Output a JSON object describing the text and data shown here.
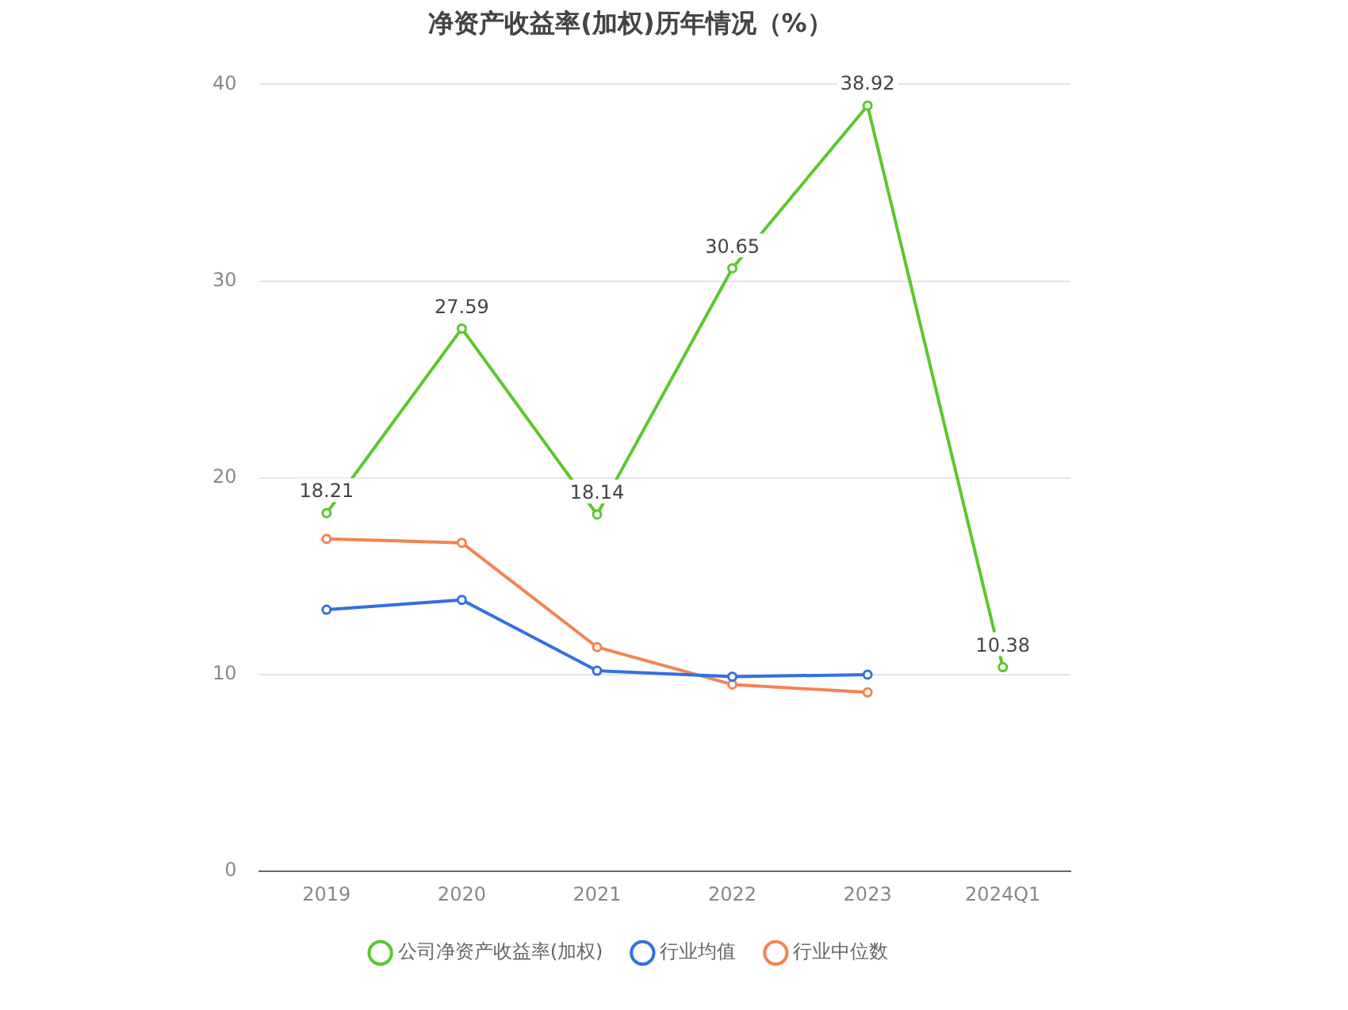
{
  "chart_data": {
    "type": "line",
    "title": "净资产收益率(加权)历年情况（%）",
    "categories": [
      "2019",
      "2020",
      "2021",
      "2022",
      "2023",
      "2024Q1"
    ],
    "series": [
      {
        "name": "公司净资产收益率(加权)",
        "color": "#5cc72e",
        "values": [
          18.21,
          27.59,
          18.14,
          30.65,
          38.92,
          10.38
        ],
        "value_labels": [
          "18.21",
          "27.59",
          "18.14",
          "30.65",
          "38.92",
          "10.38"
        ]
      },
      {
        "name": "行业均值",
        "color": "#3470e0",
        "values": [
          13.3,
          13.8,
          10.2,
          9.9,
          10.0,
          null
        ]
      },
      {
        "name": "行业中位数",
        "color": "#f5834f",
        "values": [
          16.9,
          16.7,
          11.4,
          9.5,
          9.1,
          null
        ]
      }
    ],
    "ylim": [
      0,
      40
    ],
    "yticks": [
      0,
      10,
      20,
      30,
      40
    ],
    "grid": "y",
    "legend": "bottom",
    "marker": "circle",
    "line_style": "solid"
  }
}
